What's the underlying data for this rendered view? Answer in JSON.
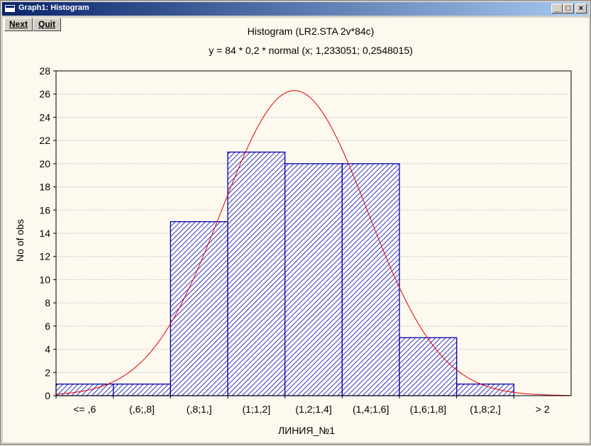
{
  "window": {
    "title": "Graph1: Histogram",
    "minimize_icon": "minimize-icon",
    "maximize_icon": "maximize-icon",
    "close_icon": "close-icon"
  },
  "toolbar": {
    "next_label": "Next",
    "quit_label": "Quit"
  },
  "chart_data": {
    "type": "bar",
    "title": "Histogram (LR2.STA 2v*84c)",
    "subtitle": "y = 84 * 0,2 * normal (x; 1,233051; 0,2548015)",
    "xlabel": "ЛИНИЯ_№1",
    "ylabel": "No of obs",
    "categories": [
      "<= ,6",
      "(,6;,8]",
      "(,8;1,]",
      "(1;1,2]",
      "(1,2;1,4]",
      "(1,4;1,6]",
      "(1,6;1,8]",
      "(1,8;2,]",
      "> 2"
    ],
    "values": [
      1,
      1,
      15,
      21,
      20,
      20,
      5,
      1,
      0
    ],
    "ylim": [
      0,
      28
    ],
    "yticks": [
      0,
      2,
      4,
      6,
      8,
      10,
      12,
      14,
      16,
      18,
      20,
      22,
      24,
      26,
      28
    ],
    "grid": "horizontal dotted",
    "bar_color": "#0000a8",
    "curve_color": "#e00000",
    "normal_fit": {
      "n": 84,
      "bin_width": 0.2,
      "mean": 1.233051,
      "sd": 0.2548015
    }
  }
}
